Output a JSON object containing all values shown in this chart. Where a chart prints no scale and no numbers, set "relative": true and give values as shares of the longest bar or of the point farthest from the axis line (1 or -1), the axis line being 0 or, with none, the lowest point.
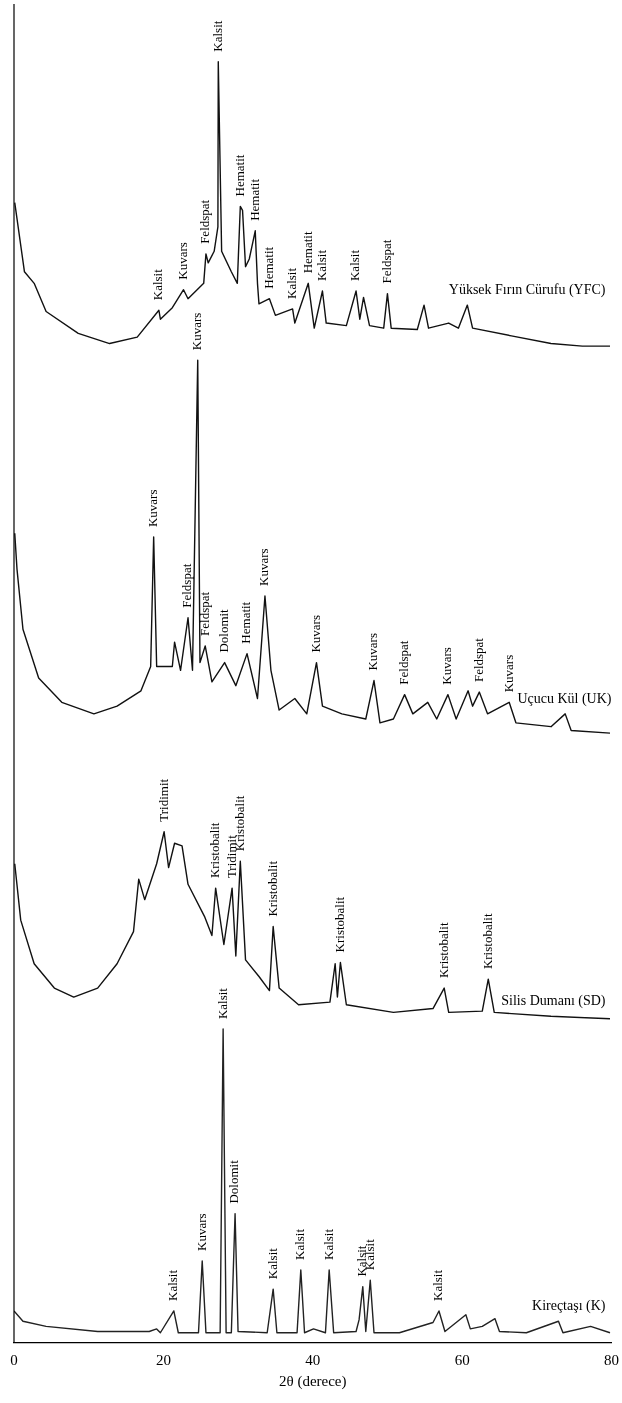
{
  "chart_data": {
    "type": "line",
    "relative": true,
    "xlabel": "2θ (derece)",
    "xlim": [
      0,
      80
    ],
    "xticks": [
      0,
      20,
      40,
      60,
      80
    ],
    "marker": "none",
    "line_style": "solid",
    "series": [
      {
        "name": "Yüksek Fırın Cürufu (YFC)",
        "color": "#111111",
        "x": [
          0.1,
          1.4,
          2.7,
          4.3,
          8.6,
          12.8,
          16.5,
          19.4,
          19.6,
          21.2,
          22.7,
          23.3,
          25.4,
          25.7,
          26.0,
          26.8,
          27.3,
          27.35,
          27.8,
          29.1,
          29.9,
          30.3,
          30.6,
          31.0,
          31.5,
          32.3,
          32.6,
          32.8,
          34.2,
          35.0,
          37.3,
          37.6,
          39.4,
          40.2,
          41.3,
          41.8,
          44.5,
          45.8,
          46.3,
          46.8,
          47.6,
          49.5,
          50.0,
          50.5,
          54.0,
          54.9,
          55.5,
          58.2,
          59.5,
          60.7,
          61.4,
          66.6,
          71.9,
          76.1,
          79.8
        ],
        "values": [
          0.89,
          0.836,
          0.827,
          0.805,
          0.788,
          0.78,
          0.785,
          0.806,
          0.799,
          0.808,
          0.822,
          0.815,
          0.827,
          0.85,
          0.843,
          0.852,
          0.871,
          1.0,
          0.852,
          0.836,
          0.827,
          0.887,
          0.884,
          0.84,
          0.846,
          0.868,
          0.827,
          0.811,
          0.815,
          0.802,
          0.807,
          0.796,
          0.827,
          0.792,
          0.821,
          0.796,
          0.794,
          0.821,
          0.799,
          0.816,
          0.794,
          0.792,
          0.819,
          0.792,
          0.791,
          0.81,
          0.792,
          0.796,
          0.792,
          0.81,
          0.792,
          0.786,
          0.78,
          0.778,
          0.778
        ]
      },
      {
        "name": "Uçucu Kül (UK)",
        "color": "#111111",
        "x": [
          0.1,
          0.4,
          1.2,
          3.3,
          6.4,
          10.7,
          13.8,
          17.0,
          18.3,
          18.7,
          19.1,
          21.2,
          21.5,
          22.3,
          23.3,
          23.9,
          24.6,
          24.9,
          25.6,
          26.5,
          28.2,
          29.7,
          31.2,
          32.6,
          33.6,
          34.4,
          35.5,
          37.6,
          39.2,
          40.5,
          41.3,
          43.9,
          47.1,
          48.2,
          49.0,
          50.8,
          52.3,
          53.4,
          55.4,
          56.6,
          58.1,
          59.2,
          60.8,
          61.4,
          62.3,
          63.4,
          66.3,
          67.2,
          71.9,
          73.8,
          74.6,
          79.8
        ],
        "values": [
          0.632,
          0.604,
          0.557,
          0.519,
          0.5,
          0.491,
          0.497,
          0.509,
          0.528,
          0.629,
          0.528,
          0.528,
          0.547,
          0.525,
          0.566,
          0.525,
          0.767,
          0.531,
          0.544,
          0.516,
          0.531,
          0.513,
          0.538,
          0.503,
          0.583,
          0.525,
          0.494,
          0.503,
          0.491,
          0.531,
          0.497,
          0.491,
          0.487,
          0.517,
          0.484,
          0.487,
          0.506,
          0.491,
          0.5,
          0.487,
          0.506,
          0.487,
          0.509,
          0.497,
          0.508,
          0.491,
          0.5,
          0.484,
          0.481,
          0.491,
          0.478,
          0.476
        ]
      },
      {
        "name": "Silis Dumanı (SD)",
        "color": "#111111",
        "x": [
          0.1,
          0.9,
          2.7,
          5.4,
          8.0,
          11.2,
          13.8,
          16.0,
          16.7,
          17.5,
          19.1,
          20.1,
          20.7,
          21.5,
          22.5,
          23.3,
          25.5,
          26.5,
          27.0,
          28.1,
          29.2,
          29.7,
          30.3,
          31.0,
          32.8,
          34.2,
          34.7,
          35.5,
          38.1,
          42.3,
          43.0,
          43.3,
          43.7,
          44.5,
          50.8,
          56.1,
          57.6,
          58.2,
          62.7,
          63.5,
          64.3,
          71.9,
          79.8
        ],
        "values": [
          0.374,
          0.33,
          0.296,
          0.277,
          0.27,
          0.277,
          0.296,
          0.321,
          0.362,
          0.346,
          0.374,
          0.399,
          0.371,
          0.39,
          0.388,
          0.358,
          0.333,
          0.318,
          0.355,
          0.311,
          0.355,
          0.302,
          0.376,
          0.299,
          0.286,
          0.275,
          0.325,
          0.277,
          0.264,
          0.266,
          0.296,
          0.27,
          0.297,
          0.264,
          0.258,
          0.261,
          0.277,
          0.258,
          0.259,
          0.284,
          0.258,
          0.255,
          0.253
        ]
      },
      {
        "name": "Kireçtaşı (K)",
        "color": "#222222",
        "x": [
          0,
          1.2,
          4.3,
          11.2,
          18.1,
          19.1,
          19.6,
          21.4,
          22.0,
          24.7,
          25.2,
          25.7,
          27.6,
          28.0,
          28.4,
          29.1,
          29.6,
          30.0,
          33.9,
          34.7,
          35.2,
          37.9,
          38.4,
          38.9,
          40.1,
          41.7,
          42.2,
          42.8,
          45.8,
          46.2,
          46.7,
          47.1,
          47.7,
          48.2,
          51.6,
          56.1,
          56.9,
          57.7,
          60.5,
          61.1,
          62.7,
          64.4,
          65.0,
          68.6,
          72.9,
          73.5,
          77.2,
          79.8
        ],
        "values": [
          0.025,
          0.017,
          0.013,
          0.009,
          0.009,
          0.011,
          0.008,
          0.025,
          0.008,
          0.008,
          0.064,
          0.008,
          0.008,
          0.245,
          0.008,
          0.008,
          0.101,
          0.009,
          0.008,
          0.042,
          0.008,
          0.008,
          0.057,
          0.008,
          0.011,
          0.008,
          0.057,
          0.008,
          0.009,
          0.018,
          0.044,
          0.009,
          0.049,
          0.008,
          0.008,
          0.016,
          0.025,
          0.009,
          0.022,
          0.011,
          0.013,
          0.019,
          0.009,
          0.008,
          0.017,
          0.008,
          0.013,
          0.008
        ]
      }
    ],
    "annotations": [
      {
        "text": "Kalsit",
        "x": 19.4,
        "y": 0.806
      },
      {
        "text": "Kuvars",
        "x": 22.7,
        "y": 0.822
      },
      {
        "text": "Feldspat",
        "x": 25.7,
        "y": 0.85
      },
      {
        "text": "Kalsit",
        "x": 27.35,
        "y": 1.0
      },
      {
        "text": "Hematit",
        "x": 30.3,
        "y": 0.887
      },
      {
        "text": "Hematit",
        "x": 32.3,
        "y": 0.868
      },
      {
        "text": "Hematit",
        "x": 34.2,
        "y": 0.815
      },
      {
        "text": "Kalsit",
        "x": 37.3,
        "y": 0.807
      },
      {
        "text": "Hematit",
        "x": 39.4,
        "y": 0.827
      },
      {
        "text": "Kalsit",
        "x": 41.3,
        "y": 0.821
      },
      {
        "text": "Kalsit",
        "x": 45.8,
        "y": 0.821
      },
      {
        "text": "Feldspat",
        "x": 50.0,
        "y": 0.819
      },
      {
        "text": "Kuvars",
        "x": 18.7,
        "y": 0.629
      },
      {
        "text": "Feldspat",
        "x": 23.3,
        "y": 0.566
      },
      {
        "text": "Kuvars",
        "x": 24.6,
        "y": 0.767
      },
      {
        "text": "Feldspat",
        "x": 25.6,
        "y": 0.544
      },
      {
        "text": "Dolomit",
        "x": 28.2,
        "y": 0.531
      },
      {
        "text": "Hematit",
        "x": 31.2,
        "y": 0.538
      },
      {
        "text": "Kuvars",
        "x": 33.6,
        "y": 0.583
      },
      {
        "text": "Kuvars",
        "x": 40.5,
        "y": 0.531
      },
      {
        "text": "Kuvars",
        "x": 48.2,
        "y": 0.517
      },
      {
        "text": "Feldspat",
        "x": 52.3,
        "y": 0.506
      },
      {
        "text": "Kuvars",
        "x": 58.1,
        "y": 0.506
      },
      {
        "text": "Feldspat",
        "x": 62.3,
        "y": 0.508
      },
      {
        "text": "Kuvars",
        "x": 66.3,
        "y": 0.5
      },
      {
        "text": "Tridimit",
        "x": 20.1,
        "y": 0.399
      },
      {
        "text": "Kristobalit",
        "x": 27.0,
        "y": 0.355
      },
      {
        "text": "Tridimit",
        "x": 29.2,
        "y": 0.355
      },
      {
        "text": "Kristobalit",
        "x": 30.3,
        "y": 0.376
      },
      {
        "text": "Kristobalit",
        "x": 34.7,
        "y": 0.325
      },
      {
        "text": "Kristobalit",
        "x": 43.7,
        "y": 0.297
      },
      {
        "text": "Kristobalit",
        "x": 57.6,
        "y": 0.277
      },
      {
        "text": "Kristobalit",
        "x": 63.5,
        "y": 0.284
      },
      {
        "text": "Kalsit",
        "x": 21.4,
        "y": 0.025
      },
      {
        "text": "Kuvars",
        "x": 25.2,
        "y": 0.064
      },
      {
        "text": "Kalsit",
        "x": 28.0,
        "y": 0.245
      },
      {
        "text": "Dolomit",
        "x": 29.6,
        "y": 0.101
      },
      {
        "text": "Kalsit",
        "x": 34.7,
        "y": 0.042
      },
      {
        "text": "Kalsit",
        "x": 38.4,
        "y": 0.057
      },
      {
        "text": "Kalsit",
        "x": 42.2,
        "y": 0.057
      },
      {
        "text": "Kalsit",
        "x": 46.7,
        "y": 0.044
      },
      {
        "text": "Kalsit",
        "x": 47.7,
        "y": 0.049
      },
      {
        "text": "Kalsit",
        "x": 56.9,
        "y": 0.025
      }
    ]
  }
}
